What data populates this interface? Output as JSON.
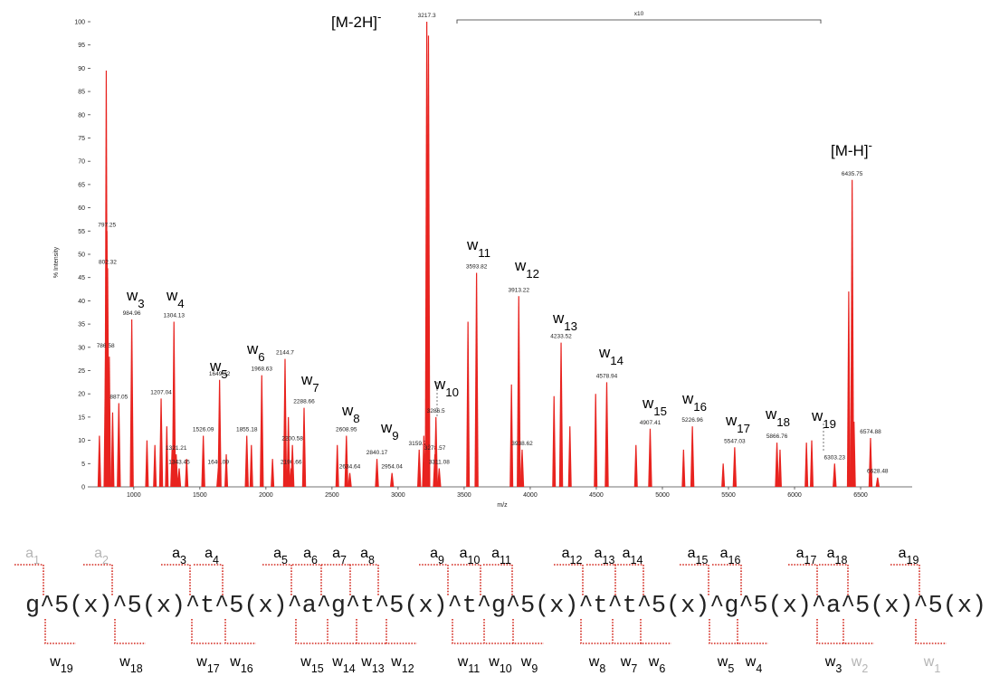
{
  "chart_data": {
    "type": "spectrum",
    "x_label": "m/z",
    "y_label": "% Intensity",
    "color": "#e8231f",
    "xlim": [
      700,
      6890
    ],
    "xticks": [
      1000,
      1500,
      2000,
      2500,
      3000,
      3500,
      4000,
      4500,
      5000,
      5500,
      6000,
      6500
    ],
    "ylim": [
      0,
      100
    ],
    "yticks": [
      0,
      5,
      10,
      15,
      20,
      25,
      30,
      35,
      40,
      45,
      50,
      55,
      60,
      65,
      70,
      75,
      80,
      85,
      90,
      95,
      100
    ],
    "peaks": {
      "x": [
        786.58,
        797.25,
        802.32,
        887.05,
        984.96,
        1207.04,
        1304.13,
        1321.21,
        1343.45,
        1526.09,
        1640.09,
        1649.32,
        1855.18,
        1968.63,
        2144.7,
        2190.66,
        2200.58,
        2288.66,
        2608.95,
        2634.64,
        2840.17,
        2954.04,
        3159.71,
        3217.3,
        3278.57,
        3286.5,
        3311.08,
        3593.82,
        3913.22,
        3938.62,
        4233.52,
        4578.94,
        4907.41,
        5226.96,
        5547.03,
        5866.76,
        6303.23,
        6435.75,
        6574.88,
        6628.48
      ],
      "values": [
        29,
        55,
        47,
        18,
        36,
        19,
        35.5,
        7,
        4,
        11,
        4,
        23,
        11,
        24,
        27.5,
        4,
        9,
        17,
        11,
        3,
        6,
        3,
        8,
        100,
        7,
        15,
        4,
        46,
        41,
        8,
        31,
        22.5,
        12.5,
        13,
        8.5,
        9.5,
        5,
        66,
        10.5,
        2
      ]
    },
    "minor_peaks": {
      "x": [
        740,
        792,
        815,
        840,
        1100,
        1160,
        1250,
        1290,
        1400,
        1700,
        1890,
        2050,
        2170,
        2540,
        3195,
        3230,
        3529,
        3858,
        4180,
        4300,
        4495,
        4800,
        5160,
        5460,
        5890,
        6090,
        6130,
        6410,
        6450
      ],
      "values": [
        11,
        89.5,
        28,
        16,
        10,
        9,
        13,
        8,
        6,
        7,
        9,
        6,
        15,
        9,
        11,
        97,
        35.5,
        22,
        19.5,
        13,
        20,
        9,
        8,
        5,
        8,
        9.5,
        10,
        42,
        14
      ]
    },
    "annotations": [
      {
        "base": "w",
        "sub": "3"
      },
      {
        "base": "w",
        "sub": "4"
      },
      {
        "base": "w",
        "sub": "5"
      },
      {
        "base": "w",
        "sub": "6"
      },
      {
        "base": "w",
        "sub": "7"
      },
      {
        "base": "w",
        "sub": "8"
      },
      {
        "base": "w",
        "sub": "9"
      },
      {
        "base": "w",
        "sub": "10"
      },
      {
        "base": "w",
        "sub": "11"
      },
      {
        "base": "w",
        "sub": "12"
      },
      {
        "base": "w",
        "sub": "13"
      },
      {
        "base": "w",
        "sub": "14"
      },
      {
        "base": "w",
        "sub": "15"
      },
      {
        "base": "w",
        "sub": "16"
      },
      {
        "base": "w",
        "sub": "17"
      },
      {
        "base": "w",
        "sub": "18"
      },
      {
        "base": "w",
        "sub": "19"
      },
      {
        "base": "[M-2H]",
        "sup": "-"
      },
      {
        "base": "[M-H]",
        "sup": "-"
      }
    ],
    "zoom_label": "x10"
  },
  "sequence": {
    "text": "g^5(x)^5(x)^t^5(x)^a^g^t^5(x)^t^g^5(x)^t^t^5(x)^g^5(x)^a^5(x)^5(x)",
    "marker_color": "#d42a20",
    "top": [
      {
        "base": "a",
        "sub": "1",
        "color": "#b5b5b5"
      },
      {
        "base": "a",
        "sub": "2",
        "color": "#b5b5b5"
      },
      {
        "base": "a",
        "sub": "3",
        "color": "#000"
      },
      {
        "base": "a",
        "sub": "4",
        "color": "#000"
      },
      {
        "base": "a",
        "sub": "5",
        "color": "#000"
      },
      {
        "base": "a",
        "sub": "6",
        "color": "#000"
      },
      {
        "base": "a",
        "sub": "7",
        "color": "#000"
      },
      {
        "base": "a",
        "sub": "8",
        "color": "#000"
      },
      {
        "base": "a",
        "sub": "9",
        "color": "#000"
      },
      {
        "base": "a",
        "sub": "10",
        "color": "#000"
      },
      {
        "base": "a",
        "sub": "11",
        "color": "#000"
      },
      {
        "base": "a",
        "sub": "12",
        "color": "#000"
      },
      {
        "base": "a",
        "sub": "13",
        "color": "#000"
      },
      {
        "base": "a",
        "sub": "14",
        "color": "#000"
      },
      {
        "base": "a",
        "sub": "15",
        "color": "#000"
      },
      {
        "base": "a",
        "sub": "16",
        "color": "#000"
      },
      {
        "base": "a",
        "sub": "17",
        "color": "#000"
      },
      {
        "base": "a",
        "sub": "18",
        "color": "#000"
      },
      {
        "base": "a",
        "sub": "19",
        "color": "#000"
      }
    ],
    "bottom": [
      {
        "base": "w",
        "sub": "19",
        "color": "#000"
      },
      {
        "base": "w",
        "sub": "18",
        "color": "#000"
      },
      {
        "base": "w",
        "sub": "17",
        "color": "#000"
      },
      {
        "base": "w",
        "sub": "16",
        "color": "#000"
      },
      {
        "base": "w",
        "sub": "15",
        "color": "#000"
      },
      {
        "base": "w",
        "sub": "14",
        "color": "#000"
      },
      {
        "base": "w",
        "sub": "13",
        "color": "#000"
      },
      {
        "base": "w",
        "sub": "12",
        "color": "#000"
      },
      {
        "base": "w",
        "sub": "11",
        "color": "#000"
      },
      {
        "base": "w",
        "sub": "10",
        "color": "#000"
      },
      {
        "base": "w",
        "sub": "9",
        "color": "#000"
      },
      {
        "base": "w",
        "sub": "8",
        "color": "#000"
      },
      {
        "base": "w",
        "sub": "7",
        "color": "#000"
      },
      {
        "base": "w",
        "sub": "6",
        "color": "#000"
      },
      {
        "base": "w",
        "sub": "5",
        "color": "#000"
      },
      {
        "base": "w",
        "sub": "4",
        "color": "#000"
      },
      {
        "base": "w",
        "sub": "3",
        "color": "#000"
      },
      {
        "base": "w",
        "sub": "2",
        "color": "#b5b5b5"
      },
      {
        "base": "w",
        "sub": "1",
        "color": "#b5b5b5"
      }
    ]
  }
}
